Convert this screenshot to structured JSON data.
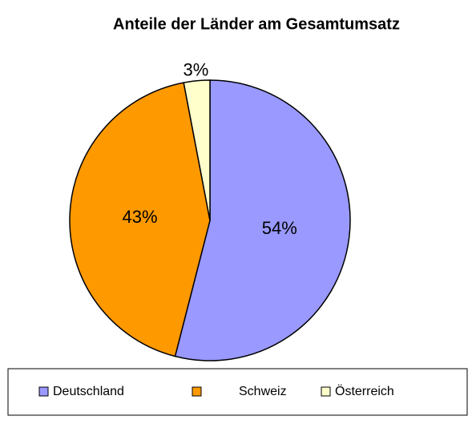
{
  "chart_data": {
    "type": "pie",
    "title": "Anteile der Länder am Gesamtumsatz",
    "categories": [
      "Deutschland",
      "Schweiz",
      "Österreich"
    ],
    "values": [
      54,
      43,
      3
    ],
    "value_labels": [
      "54%",
      "43%",
      "3%"
    ],
    "colors": [
      "#9999ff",
      "#ff9900",
      "#ffffcc"
    ],
    "legend": "bottom"
  }
}
